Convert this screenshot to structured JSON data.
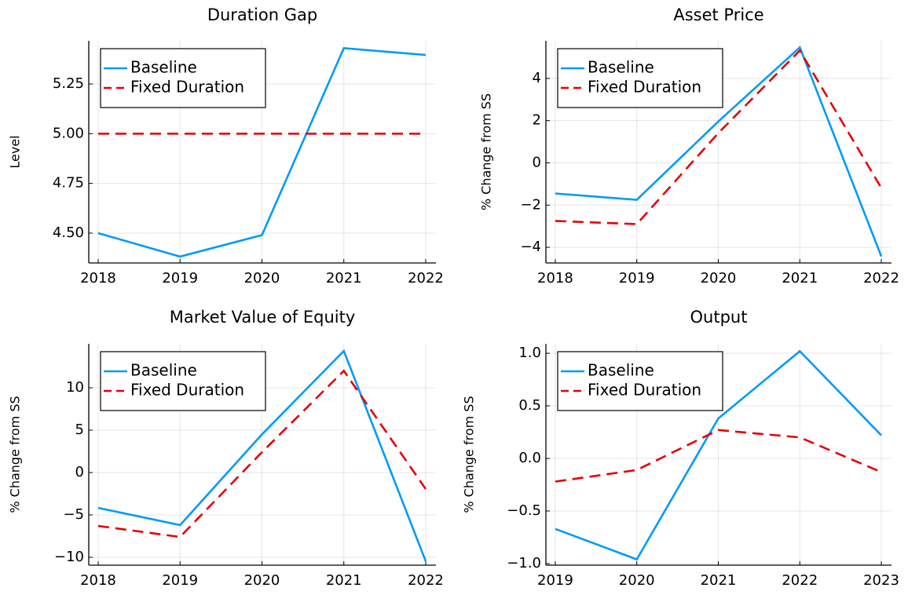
{
  "chart_data": [
    {
      "type": "line",
      "title": "Duration Gap",
      "ylabel": "Level",
      "x": [
        2018,
        2019,
        2020,
        2021,
        2022
      ],
      "xlim": [
        2017.885,
        2022.125
      ],
      "xticks": [
        2018,
        2019,
        2020,
        2021,
        2022
      ],
      "ylim": [
        4.35,
        5.467
      ],
      "yticks": [
        {
          "value": 4.5,
          "label": "4.50"
        },
        {
          "value": 4.75,
          "label": "4.75"
        },
        {
          "value": 5.0,
          "label": "5.00"
        },
        {
          "value": 5.25,
          "label": "5.25"
        }
      ],
      "grid": true,
      "legend": "top-left",
      "series": [
        {
          "name": "Baseline",
          "color": "#009af9",
          "dash": "solid",
          "values": [
            4.5,
            4.382,
            4.49,
            5.43,
            5.396
          ]
        },
        {
          "name": "Fixed Duration",
          "color": "#e3000b",
          "dash": "dashed",
          "values": [
            5.0,
            5.0,
            5.0,
            5.0,
            5.0
          ]
        }
      ]
    },
    {
      "type": "line",
      "title": "Asset Price",
      "ylabel": "% Change from SS",
      "x": [
        2018,
        2019,
        2020,
        2021,
        2022
      ],
      "xlim": [
        2017.885,
        2022.125
      ],
      "xticks": [
        2018,
        2019,
        2020,
        2021,
        2022
      ],
      "ylim": [
        -4.74,
        5.78
      ],
      "yticks": [
        {
          "value": -4,
          "label": "−4"
        },
        {
          "value": -2,
          "label": "−2"
        },
        0,
        2,
        4
      ],
      "grid": true,
      "legend": "top-left",
      "series": [
        {
          "name": "Baseline",
          "color": "#009af9",
          "dash": "solid",
          "values": [
            -1.45,
            -1.75,
            1.96,
            5.47,
            -4.43
          ]
        },
        {
          "name": "Fixed Duration",
          "color": "#e3000b",
          "dash": "dashed",
          "values": [
            -2.75,
            -2.9,
            1.41,
            5.32,
            -1.19
          ]
        }
      ]
    },
    {
      "type": "line",
      "title": "Market Value of Equity",
      "ylabel": "% Change from SS",
      "x": [
        2018,
        2019,
        2020,
        2021,
        2022
      ],
      "xlim": [
        2017.885,
        2022.125
      ],
      "xticks": [
        2018,
        2019,
        2020,
        2021,
        2022
      ],
      "ylim": [
        -10.93,
        15.19
      ],
      "yticks": [
        {
          "value": -10,
          "label": "−10"
        },
        {
          "value": -5,
          "label": "−5"
        },
        0,
        5,
        10
      ],
      "grid": true,
      "legend": "top-left",
      "series": [
        {
          "name": "Baseline",
          "color": "#009af9",
          "dash": "solid",
          "values": [
            -4.17,
            -6.2,
            4.5,
            14.35,
            -10.46
          ]
        },
        {
          "name": "Fixed Duration",
          "color": "#e3000b",
          "dash": "dashed",
          "values": [
            -6.3,
            -7.6,
            2.4,
            12.0,
            -1.94
          ]
        }
      ]
    },
    {
      "type": "line",
      "title": "Output",
      "ylabel": "% Change from SS",
      "x": [
        2019,
        2020,
        2021,
        2022,
        2023
      ],
      "xlim": [
        2018.885,
        2023.125
      ],
      "xticks": [
        2019,
        2020,
        2021,
        2022,
        2023
      ],
      "ylim": [
        -1.015,
        1.09
      ],
      "yticks": [
        {
          "value": -1,
          "label": "−1.0"
        },
        {
          "value": -0.5,
          "label": "−0.5"
        },
        {
          "value": 0,
          "label": "0.0"
        },
        {
          "value": 0.5,
          "label": "0.5"
        },
        {
          "value": 1,
          "label": "1.0"
        }
      ],
      "grid": true,
      "legend": "top-left",
      "series": [
        {
          "name": "Baseline",
          "color": "#009af9",
          "dash": "solid",
          "values": [
            -0.67,
            -0.96,
            0.38,
            1.02,
            0.22
          ]
        },
        {
          "name": "Fixed Duration",
          "color": "#e3000b",
          "dash": "dashed",
          "values": [
            -0.22,
            -0.11,
            0.27,
            0.2,
            -0.13
          ]
        }
      ]
    }
  ]
}
